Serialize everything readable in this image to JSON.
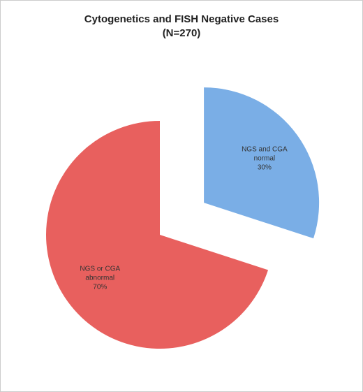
{
  "chart_data": {
    "type": "pie",
    "title": "Cytogenetics and FISH Negative Cases",
    "subtitle": "(N=270)",
    "categories": [
      "NGS and CGA normal",
      "NGS or CGA abnormal"
    ],
    "values": [
      30,
      70
    ],
    "value_labels": [
      "30%",
      "70%"
    ],
    "colors": [
      "#7aaee6",
      "#e8605e"
    ],
    "exploded": [
      true,
      false
    ]
  }
}
